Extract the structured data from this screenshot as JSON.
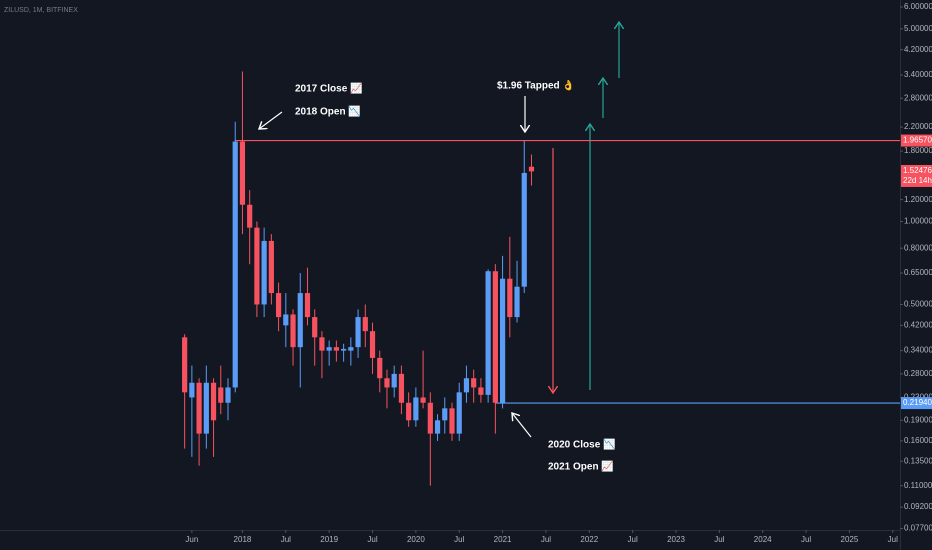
{
  "chart_data": {
    "type": "candlestick",
    "title": "ZILUSD, 1M, BITFINEX",
    "scale": "log",
    "up_color": "#5b9cf6",
    "down_color": "#f7525f",
    "x": [
      "2017-05",
      "2017-06",
      "2017-07",
      "2017-08",
      "2017-09",
      "2017-10",
      "2017-11",
      "2017-12",
      "2018-01",
      "2018-02",
      "2018-03",
      "2018-04",
      "2018-05",
      "2018-06",
      "2018-07",
      "2018-08",
      "2018-09",
      "2018-10",
      "2018-11",
      "2018-12",
      "2019-01",
      "2019-02",
      "2019-03",
      "2019-04",
      "2019-05",
      "2019-06",
      "2019-07",
      "2019-08",
      "2019-09",
      "2019-10",
      "2019-11",
      "2019-12",
      "2020-01",
      "2020-02",
      "2020-03",
      "2020-04",
      "2020-05",
      "2020-06",
      "2020-07",
      "2020-08",
      "2020-09",
      "2020-10",
      "2020-11",
      "2020-12",
      "2021-01",
      "2021-02",
      "2021-03",
      "2021-04",
      "2021-05"
    ],
    "open": [
      0.38,
      0.23,
      0.26,
      0.17,
      0.26,
      0.25,
      0.22,
      0.25,
      1.95,
      1.15,
      0.95,
      0.5,
      0.85,
      0.55,
      0.42,
      0.46,
      0.35,
      0.55,
      0.45,
      0.38,
      0.34,
      0.35,
      0.34,
      0.34,
      0.35,
      0.45,
      0.4,
      0.32,
      0.27,
      0.25,
      0.28,
      0.22,
      0.19,
      0.23,
      0.22,
      0.17,
      0.19,
      0.21,
      0.17,
      0.24,
      0.27,
      0.25,
      0.235,
      0.66,
      0.22,
      0.62,
      0.45,
      0.58,
      1.58
    ],
    "high": [
      0.39,
      0.3,
      0.27,
      0.3,
      0.27,
      0.3,
      0.27,
      2.3,
      3.5,
      1.3,
      1.0,
      0.95,
      0.9,
      0.6,
      0.55,
      0.48,
      0.65,
      0.68,
      0.48,
      0.4,
      0.37,
      0.37,
      0.36,
      0.38,
      0.48,
      0.5,
      0.43,
      0.34,
      0.29,
      0.3,
      0.3,
      0.24,
      0.25,
      0.34,
      0.24,
      0.2,
      0.23,
      0.22,
      0.26,
      0.3,
      0.29,
      0.27,
      0.67,
      0.7,
      0.75,
      0.88,
      0.72,
      1.96,
      1.75
    ],
    "low": [
      0.15,
      0.14,
      0.13,
      0.15,
      0.14,
      0.2,
      0.19,
      0.24,
      0.9,
      0.7,
      0.45,
      0.45,
      0.5,
      0.4,
      0.35,
      0.3,
      0.25,
      0.42,
      0.3,
      0.27,
      0.3,
      0.31,
      0.31,
      0.3,
      0.32,
      0.35,
      0.28,
      0.24,
      0.21,
      0.23,
      0.2,
      0.18,
      0.18,
      0.21,
      0.11,
      0.16,
      0.17,
      0.16,
      0.16,
      0.22,
      0.22,
      0.22,
      0.22,
      0.17,
      0.21,
      0.38,
      0.43,
      0.55,
      1.35
    ],
    "close": [
      0.24,
      0.26,
      0.17,
      0.26,
      0.19,
      0.22,
      0.25,
      1.95,
      1.15,
      0.95,
      0.5,
      0.85,
      0.55,
      0.45,
      0.46,
      0.35,
      0.55,
      0.45,
      0.38,
      0.34,
      0.35,
      0.34,
      0.345,
      0.35,
      0.45,
      0.4,
      0.32,
      0.27,
      0.25,
      0.28,
      0.22,
      0.19,
      0.23,
      0.22,
      0.17,
      0.19,
      0.21,
      0.17,
      0.24,
      0.27,
      0.25,
      0.235,
      0.66,
      0.22,
      0.62,
      0.45,
      0.58,
      1.5,
      1.52
    ],
    "xlim": [
      "2015-04",
      "2025-08"
    ],
    "xticks": [
      {
        "value": "2017-06",
        "label": "Jun"
      },
      {
        "value": "2018-01",
        "label": "2018"
      },
      {
        "value": "2018-07",
        "label": "Jul"
      },
      {
        "value": "2019-01",
        "label": "2019"
      },
      {
        "value": "2019-07",
        "label": "Jul"
      },
      {
        "value": "2020-01",
        "label": "2020"
      },
      {
        "value": "2020-07",
        "label": "Jul"
      },
      {
        "value": "2021-01",
        "label": "2021"
      },
      {
        "value": "2021-07",
        "label": "Jul"
      },
      {
        "value": "2022-01",
        "label": "2022"
      },
      {
        "value": "2022-07",
        "label": "Jul"
      },
      {
        "value": "2023-01",
        "label": "2023"
      },
      {
        "value": "2023-07",
        "label": "Jul"
      },
      {
        "value": "2024-01",
        "label": "2024"
      },
      {
        "value": "2024-07",
        "label": "Jul"
      },
      {
        "value": "2025-01",
        "label": "2025"
      },
      {
        "value": "2025-07",
        "label": "Jul"
      }
    ],
    "ylim": [
      0.076,
      6.36
    ],
    "yticks": [
      {
        "value": 6,
        "label": "6.00000"
      },
      {
        "value": 5,
        "label": "5.00000"
      },
      {
        "value": 4.2,
        "label": "4.20000"
      },
      {
        "value": 3.4,
        "label": "3.40000"
      },
      {
        "value": 2.8,
        "label": "2.80000"
      },
      {
        "value": 2.2,
        "label": "2.20000"
      },
      {
        "value": 1.8,
        "label": "1.80000"
      },
      {
        "value": 1.2,
        "label": "1.20000"
      },
      {
        "value": 1,
        "label": "1.00000"
      },
      {
        "value": 0.8,
        "label": "0.80000"
      },
      {
        "value": 0.65,
        "label": "0.65000"
      },
      {
        "value": 0.5,
        "label": "0.50000"
      },
      {
        "value": 0.42,
        "label": "0.42000"
      },
      {
        "value": 0.34,
        "label": "0.34000"
      },
      {
        "value": 0.28,
        "label": "0.28000"
      },
      {
        "value": 0.23,
        "label": "0.23000"
      },
      {
        "value": 0.19,
        "label": "0.19000"
      },
      {
        "value": 0.16,
        "label": "0.16000"
      },
      {
        "value": 0.135,
        "label": "0.13500"
      },
      {
        "value": 0.11,
        "label": "0.11000"
      },
      {
        "value": 0.092,
        "label": "0.09200"
      },
      {
        "value": 0.077,
        "label": "0.07700"
      }
    ],
    "levels": [
      {
        "value": 1.9657,
        "label": "1.96570",
        "color": "#f7525f",
        "start": "2017-12"
      },
      {
        "value": 0.2194,
        "label": "0.21940",
        "color": "#5b9cf6",
        "start": "2020-12"
      }
    ],
    "last_price": {
      "value": 1.52476,
      "label": "1.52476",
      "countdown": "22d 14h",
      "color": "#f7525f"
    },
    "annotations": [
      "2017 Close 📈",
      "2018 Open 📉",
      "$1.96 Tapped 👌",
      "2020 Close 📉",
      "2021 Open 📈"
    ]
  }
}
